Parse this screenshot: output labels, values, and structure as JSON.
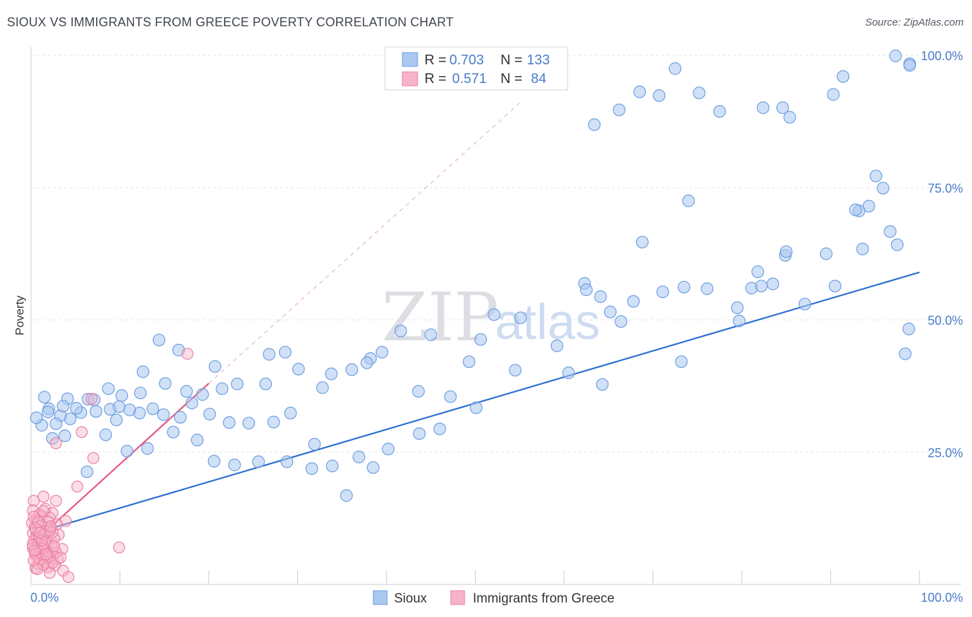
{
  "header": {
    "title": "SIOUX VS IMMIGRANTS FROM GREECE POVERTY CORRELATION CHART",
    "source": "Source: ZipAtlas.com"
  },
  "watermark": {
    "zip": "ZIP",
    "atlas": "atlas"
  },
  "legend": {
    "rows": [
      {
        "r_label": "R =",
        "r_value": "0.703",
        "n_label": "N =",
        "n_value": "133"
      },
      {
        "r_label": "R =",
        "r_value": "0.571",
        "n_label": "N =",
        "n_value": "84"
      }
    ],
    "bottom": [
      "Sioux",
      "Immigrants from Greece"
    ]
  },
  "colors": {
    "sioux_fill": "#a9c8f0",
    "sioux_stroke": "#6f9ee0",
    "sioux_line": "#2b6ed2",
    "greece_fill": "#f7b3c8",
    "greece_stroke": "#ec7fa3",
    "greece_line": "#e4547f",
    "grid": "#e3e6ea",
    "tick": "#4a7cc9"
  },
  "chart_data": {
    "type": "scatter",
    "title": "SIOUX VS IMMIGRANTS FROM GREECE POVERTY CORRELATION CHART",
    "xlabel": "",
    "ylabel": "Poverty",
    "xlim": [
      0,
      100
    ],
    "ylim": [
      0,
      100
    ],
    "x_tick_labels": [
      "0.0%",
      "100.0%"
    ],
    "y_tick_labels": [
      "25.0%",
      "50.0%",
      "75.0%",
      "100.0%"
    ],
    "y_ticks": [
      25,
      50,
      75,
      100
    ],
    "grid": "horizontal dashed",
    "legend_position": "top-center",
    "series": [
      {
        "name": "Sioux",
        "R": 0.703,
        "N": 133,
        "trend": {
          "x": [
            0,
            100
          ],
          "y": [
            9.5,
            59
          ]
        },
        "points": [
          [
            97.3,
            99.9
          ],
          [
            98.9,
            98.4
          ],
          [
            98.9,
            98.1
          ],
          [
            91.4,
            96.0
          ],
          [
            90.3,
            92.6
          ],
          [
            85.4,
            88.3
          ],
          [
            84.6,
            90.1
          ],
          [
            82.4,
            90.1
          ],
          [
            77.5,
            89.4
          ],
          [
            75.2,
            92.9
          ],
          [
            72.5,
            97.5
          ],
          [
            70.7,
            92.4
          ],
          [
            68.5,
            93.1
          ],
          [
            66.2,
            89.7
          ],
          [
            63.4,
            86.9
          ],
          [
            95.1,
            77.2
          ],
          [
            95.9,
            74.9
          ],
          [
            94.3,
            71.5
          ],
          [
            93.2,
            70.6
          ],
          [
            96.7,
            66.7
          ],
          [
            97.5,
            64.2
          ],
          [
            92.8,
            70.8
          ],
          [
            89.5,
            62.5
          ],
          [
            84.9,
            62.2
          ],
          [
            83.5,
            56.8
          ],
          [
            81.1,
            56.0
          ],
          [
            81.8,
            59.1
          ],
          [
            82.2,
            56.4
          ],
          [
            79.5,
            52.3
          ],
          [
            76.1,
            55.9
          ],
          [
            73.5,
            56.2
          ],
          [
            71.1,
            55.3
          ],
          [
            67.8,
            53.5
          ],
          [
            66.4,
            49.7
          ],
          [
            65.2,
            51.5
          ],
          [
            64.1,
            54.4
          ],
          [
            62.3,
            56.9
          ],
          [
            55.1,
            50.4
          ],
          [
            52.1,
            51.0
          ],
          [
            50.6,
            46.3
          ],
          [
            49.3,
            42.1
          ],
          [
            45.0,
            47.2
          ],
          [
            41.6,
            47.9
          ],
          [
            39.5,
            43.9
          ],
          [
            38.2,
            42.7
          ],
          [
            36.1,
            40.6
          ],
          [
            33.8,
            39.8
          ],
          [
            30.1,
            40.7
          ],
          [
            28.6,
            43.9
          ],
          [
            26.8,
            43.5
          ],
          [
            23.2,
            37.9
          ],
          [
            21.5,
            37.0
          ],
          [
            19.3,
            35.9
          ],
          [
            17.5,
            36.5
          ],
          [
            15.1,
            38.0
          ],
          [
            12.3,
            36.2
          ],
          [
            10.2,
            35.7
          ],
          [
            8.7,
            37.0
          ],
          [
            6.4,
            35.0
          ],
          [
            4.1,
            35.1
          ],
          [
            2.0,
            33.2
          ],
          [
            1.5,
            35.4
          ],
          [
            98.4,
            43.6
          ],
          [
            85.0,
            62.9
          ],
          [
            74.0,
            72.5
          ],
          [
            68.8,
            64.7
          ],
          [
            62.5,
            55.7
          ],
          [
            59.2,
            45.1
          ],
          [
            50.1,
            33.4
          ],
          [
            46.0,
            29.4
          ],
          [
            43.7,
            28.5
          ],
          [
            40.2,
            25.6
          ],
          [
            38.5,
            22.1
          ],
          [
            35.5,
            16.8
          ],
          [
            31.9,
            26.5
          ],
          [
            29.2,
            32.4
          ],
          [
            27.3,
            30.7
          ],
          [
            24.5,
            30.5
          ],
          [
            22.3,
            30.6
          ],
          [
            20.1,
            32.2
          ],
          [
            18.1,
            34.3
          ],
          [
            16.8,
            31.6
          ],
          [
            14.9,
            32.1
          ],
          [
            13.7,
            33.2
          ],
          [
            12.2,
            32.4
          ],
          [
            11.1,
            33.0
          ],
          [
            9.6,
            31.1
          ],
          [
            8.9,
            33.1
          ],
          [
            7.3,
            32.7
          ],
          [
            5.6,
            32.5
          ],
          [
            4.4,
            31.3
          ],
          [
            3.3,
            31.9
          ],
          [
            2.8,
            30.4
          ],
          [
            1.2,
            30.1
          ],
          [
            0.6,
            31.5
          ],
          [
            36.9,
            24.1
          ],
          [
            33.9,
            22.4
          ],
          [
            31.6,
            21.9
          ],
          [
            28.8,
            23.2
          ],
          [
            25.6,
            23.2
          ],
          [
            22.9,
            22.6
          ],
          [
            20.6,
            23.3
          ],
          [
            18.7,
            27.3
          ],
          [
            16.0,
            28.8
          ],
          [
            13.1,
            25.7
          ],
          [
            10.8,
            25.2
          ],
          [
            8.4,
            28.3
          ],
          [
            6.3,
            21.3
          ],
          [
            3.8,
            28.1
          ],
          [
            2.4,
            27.6
          ],
          [
            98.8,
            48.3
          ],
          [
            93.6,
            63.4
          ],
          [
            90.5,
            56.4
          ],
          [
            87.1,
            53.0
          ],
          [
            79.7,
            49.8
          ],
          [
            73.2,
            42.1
          ],
          [
            64.3,
            37.8
          ],
          [
            60.5,
            40.0
          ],
          [
            54.5,
            40.5
          ],
          [
            47.2,
            35.5
          ],
          [
            43.6,
            36.5
          ],
          [
            37.8,
            41.9
          ],
          [
            32.8,
            37.2
          ],
          [
            26.4,
            37.9
          ],
          [
            20.7,
            41.2
          ],
          [
            16.6,
            44.3
          ],
          [
            14.4,
            46.2
          ],
          [
            12.6,
            40.2
          ],
          [
            9.9,
            33.6
          ],
          [
            7.1,
            34.9
          ],
          [
            5.1,
            33.3
          ],
          [
            3.6,
            33.7
          ],
          [
            1.9,
            32.6
          ]
        ]
      },
      {
        "name": "Immigrants from Greece",
        "R": 0.571,
        "N": 84,
        "trend": {
          "x": [
            0,
            20
          ],
          "y": [
            7.5,
            38
          ],
          "dashed_to": [
            55,
            91
          ]
        },
        "points": [
          [
            17.6,
            43.6
          ],
          [
            6.8,
            35.1
          ],
          [
            5.7,
            28.8
          ],
          [
            2.8,
            26.7
          ],
          [
            7.0,
            23.9
          ],
          [
            5.2,
            18.5
          ],
          [
            1.4,
            16.6
          ],
          [
            0.3,
            15.8
          ],
          [
            2.8,
            15.8
          ],
          [
            1.6,
            14.3
          ],
          [
            0.2,
            14.0
          ],
          [
            2.4,
            13.5
          ],
          [
            0.9,
            13.2
          ],
          [
            1.2,
            12.9
          ],
          [
            2.1,
            12.6
          ],
          [
            0.6,
            12.2
          ],
          [
            3.9,
            12.0
          ],
          [
            1.9,
            11.9
          ],
          [
            0.1,
            11.6
          ],
          [
            2.9,
            11.4
          ],
          [
            1.1,
            11.1
          ],
          [
            0.4,
            10.8
          ],
          [
            2.2,
            10.6
          ],
          [
            0.8,
            10.3
          ],
          [
            1.7,
            10.0
          ],
          [
            0.2,
            9.7
          ],
          [
            3.1,
            9.4
          ],
          [
            1.3,
            9.2
          ],
          [
            0.6,
            9.0
          ],
          [
            2.6,
            8.7
          ],
          [
            1.0,
            8.5
          ],
          [
            0.3,
            8.2
          ],
          [
            1.9,
            8.0
          ],
          [
            0.7,
            7.7
          ],
          [
            2.3,
            7.4
          ],
          [
            1.4,
            7.1
          ],
          [
            0.2,
            6.9
          ],
          [
            3.5,
            6.7
          ],
          [
            1.6,
            6.5
          ],
          [
            0.9,
            6.2
          ],
          [
            2.0,
            6.0
          ],
          [
            0.4,
            5.8
          ],
          [
            1.2,
            5.6
          ],
          [
            2.5,
            5.4
          ],
          [
            0.7,
            5.2
          ],
          [
            1.8,
            5.0
          ],
          [
            3.0,
            4.8
          ],
          [
            1.1,
            4.6
          ],
          [
            2.2,
            4.4
          ],
          [
            1.5,
            4.2
          ],
          [
            0.8,
            3.9
          ],
          [
            2.7,
            3.6
          ],
          [
            1.9,
            3.3
          ],
          [
            0.5,
            3.1
          ],
          [
            3.6,
            2.6
          ],
          [
            2.1,
            2.2
          ],
          [
            4.2,
            1.4
          ],
          [
            0.3,
            12.8
          ],
          [
            1.4,
            13.9
          ],
          [
            0.5,
            10.5
          ],
          [
            2.4,
            9.9
          ],
          [
            0.9,
            8.9
          ],
          [
            1.6,
            7.9
          ],
          [
            0.2,
            7.5
          ],
          [
            1.3,
            6.8
          ],
          [
            2.8,
            6.1
          ],
          [
            0.6,
            5.9
          ],
          [
            1.9,
            5.3
          ],
          [
            1.0,
            4.9
          ],
          [
            2.4,
            4.1
          ],
          [
            9.9,
            7.0
          ],
          [
            1.5,
            9.5
          ],
          [
            0.8,
            11.8
          ],
          [
            2.1,
            10.2
          ],
          [
            1.2,
            8.3
          ],
          [
            0.4,
            6.4
          ],
          [
            1.7,
            5.7
          ],
          [
            2.6,
            7.2
          ],
          [
            1.0,
            9.8
          ],
          [
            0.3,
            4.5
          ],
          [
            2.2,
            11.0
          ],
          [
            3.3,
            5.1
          ],
          [
            1.4,
            3.7
          ],
          [
            0.7,
            2.9
          ]
        ]
      }
    ]
  }
}
